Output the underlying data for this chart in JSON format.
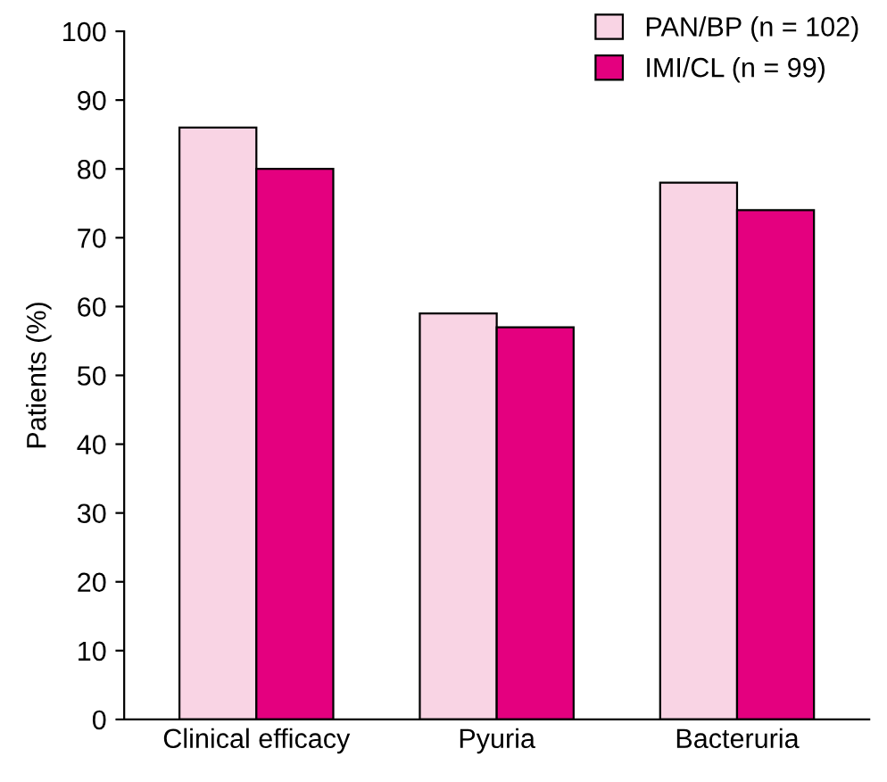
{
  "chart_data": {
    "type": "bar",
    "ylabel": "Patients (%)",
    "categories": [
      "Clinical efficacy",
      "Pyuria",
      "Bacteruria"
    ],
    "series": [
      {
        "name": "PAN/BP (n = 102)",
        "color": "#f9d4e4",
        "values": [
          86,
          59,
          78
        ]
      },
      {
        "name": "IMI/CL (n = 99)",
        "color": "#e4007f",
        "values": [
          80,
          57,
          74
        ]
      }
    ],
    "ylim": [
      0,
      100
    ],
    "yticks": [
      0,
      10,
      20,
      30,
      40,
      50,
      60,
      70,
      80,
      90,
      100
    ],
    "grid": false,
    "legend": "top right"
  }
}
